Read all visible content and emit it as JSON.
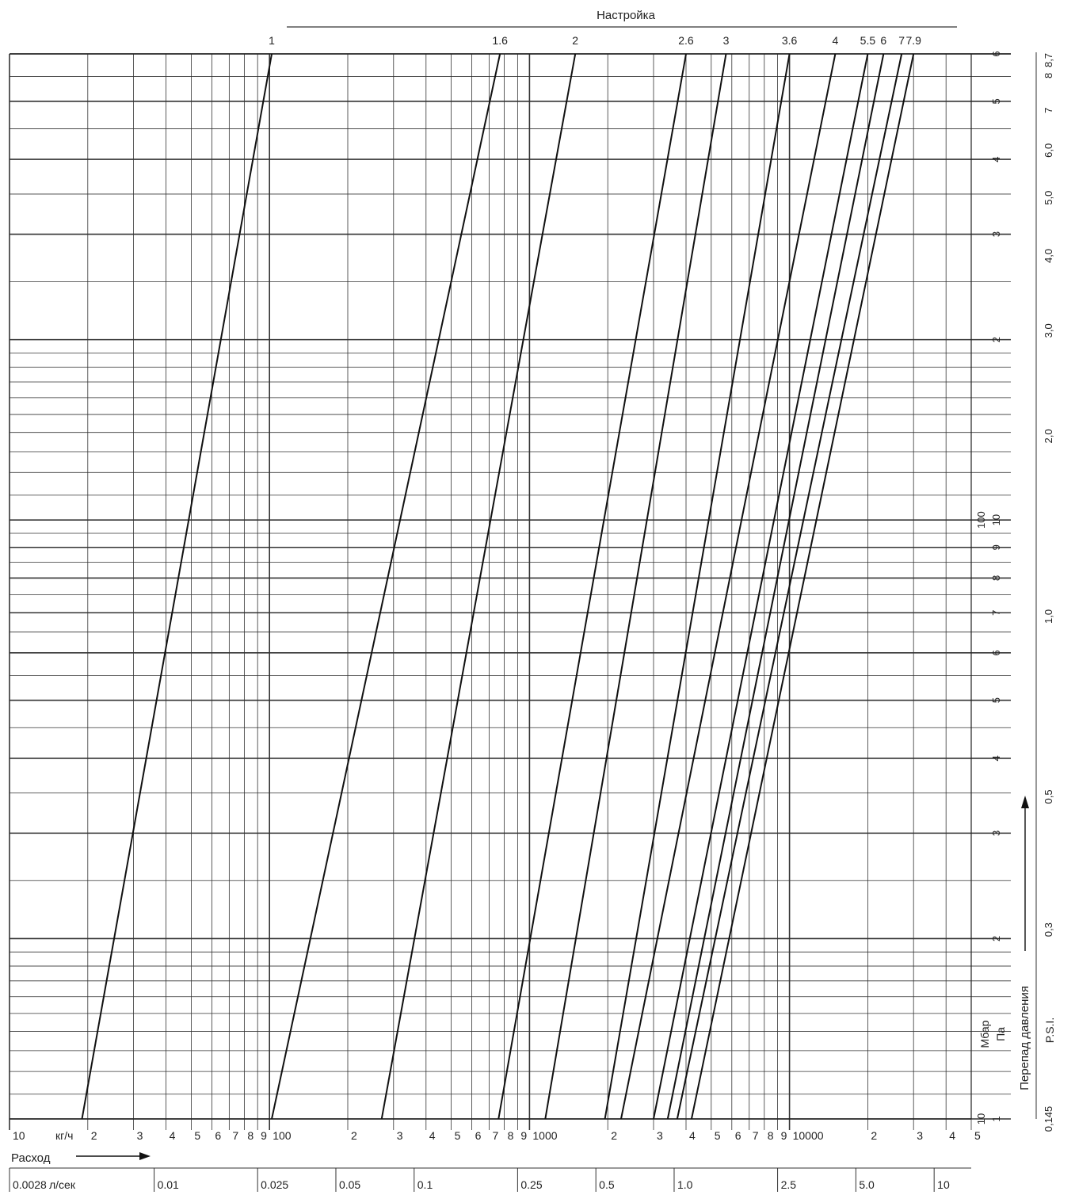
{
  "chart_data": {
    "type": "line",
    "title": "Настройка",
    "x_scale": "log",
    "y_scale": "log",
    "xlim": [
      10,
      50000
    ],
    "ylim": [
      10,
      600
    ],
    "xlabel_main": "Расход",
    "x_unit_label": "кг/ч",
    "x_start_label": "10",
    "x_ticks": [
      {
        "v": 20,
        "t": "2"
      },
      {
        "v": 30,
        "t": "3"
      },
      {
        "v": 40,
        "t": "4"
      },
      {
        "v": 50,
        "t": "5"
      },
      {
        "v": 60,
        "t": "6"
      },
      {
        "v": 70,
        "t": "7"
      },
      {
        "v": 80,
        "t": "8"
      },
      {
        "v": 90,
        "t": "9"
      },
      {
        "v": 100,
        "t": "100"
      },
      {
        "v": 200,
        "t": "2"
      },
      {
        "v": 300,
        "t": "3"
      },
      {
        "v": 400,
        "t": "4"
      },
      {
        "v": 500,
        "t": "5"
      },
      {
        "v": 600,
        "t": "6"
      },
      {
        "v": 700,
        "t": "7"
      },
      {
        "v": 800,
        "t": "8"
      },
      {
        "v": 900,
        "t": "9"
      },
      {
        "v": 1000,
        "t": "1000"
      },
      {
        "v": 2000,
        "t": "2"
      },
      {
        "v": 3000,
        "t": "3"
      },
      {
        "v": 4000,
        "t": "4"
      },
      {
        "v": 5000,
        "t": "5"
      },
      {
        "v": 6000,
        "t": "6"
      },
      {
        "v": 7000,
        "t": "7"
      },
      {
        "v": 8000,
        "t": "8"
      },
      {
        "v": 9000,
        "t": "9"
      },
      {
        "v": 10000,
        "t": "10000"
      },
      {
        "v": 20000,
        "t": "2"
      },
      {
        "v": 30000,
        "t": "3"
      },
      {
        "v": 40000,
        "t": "4"
      },
      {
        "v": 50000,
        "t": "5"
      }
    ],
    "x_secondary_unit_label": "л/сек",
    "x_secondary_ticks": [
      {
        "v": 10,
        "t": "0.0028"
      },
      {
        "v": 36,
        "t": "0.01"
      },
      {
        "v": 90,
        "t": "0.025"
      },
      {
        "v": 180,
        "t": "0.05"
      },
      {
        "v": 360,
        "t": "0.1"
      },
      {
        "v": 900,
        "t": "0.25"
      },
      {
        "v": 1800,
        "t": "0.5"
      },
      {
        "v": 3600,
        "t": "1.0"
      },
      {
        "v": 9000,
        "t": "2.5"
      },
      {
        "v": 18000,
        "t": "5.0"
      },
      {
        "v": 36000,
        "t": "10"
      }
    ],
    "y_gridlines": [
      10,
      11,
      12,
      13,
      14,
      15,
      16,
      17,
      18,
      19,
      20,
      25,
      30,
      35,
      40,
      45,
      50,
      55,
      60,
      65,
      70,
      75,
      80,
      85,
      90,
      95,
      100,
      110,
      120,
      130,
      140,
      150,
      160,
      170,
      180,
      190,
      200,
      250,
      300,
      350,
      400,
      450,
      500,
      550,
      600
    ],
    "y_major_gridlines": [
      10,
      20,
      30,
      40,
      50,
      60,
      70,
      80,
      90,
      100,
      200,
      300,
      400,
      500,
      600
    ],
    "y_ticks_mbar": [
      {
        "v": 10,
        "t": "10"
      },
      {
        "v": 100,
        "t": "100"
      }
    ],
    "y_ticks_pa": [
      {
        "v": 10,
        "t": "1"
      },
      {
        "v": 20,
        "t": "2"
      },
      {
        "v": 30,
        "t": "3"
      },
      {
        "v": 40,
        "t": "4"
      },
      {
        "v": 50,
        "t": "5"
      },
      {
        "v": 60,
        "t": "6"
      },
      {
        "v": 70,
        "t": "7"
      },
      {
        "v": 80,
        "t": "8"
      },
      {
        "v": 90,
        "t": "9"
      },
      {
        "v": 100,
        "t": "10"
      },
      {
        "v": 200,
        "t": "2"
      },
      {
        "v": 300,
        "t": "3"
      },
      {
        "v": 400,
        "t": "4"
      },
      {
        "v": 500,
        "t": "5"
      },
      {
        "v": 600,
        "t": "6"
      }
    ],
    "y_ticks_psi": [
      {
        "v": 10,
        "t": "0,145"
      },
      {
        "v": 20.7,
        "t": "0,3"
      },
      {
        "v": 34.5,
        "t": "0,5"
      },
      {
        "v": 69,
        "t": "1,0"
      },
      {
        "v": 138,
        "t": "2,0"
      },
      {
        "v": 207,
        "t": "3,0"
      },
      {
        "v": 276,
        "t": "4,0"
      },
      {
        "v": 345,
        "t": "5,0"
      },
      {
        "v": 414,
        "t": "6,0"
      },
      {
        "v": 483,
        "t": "7"
      },
      {
        "v": 552,
        "t": "8"
      },
      {
        "v": 600,
        "t": "8,7"
      }
    ],
    "y_unit_labels": {
      "mbar": "Мбар",
      "pa": "Па",
      "psi": "P.S.I."
    },
    "ylabel": "Перепад давления",
    "series": [
      {
        "name": "1",
        "x": [
          19,
          102
        ]
      },
      {
        "name": "1.6",
        "x": [
          102,
          770
        ]
      },
      {
        "name": "2",
        "x": [
          270,
          1500
        ]
      },
      {
        "name": "2.6",
        "x": [
          760,
          4000
        ]
      },
      {
        "name": "3",
        "x": [
          1150,
          5700
        ]
      },
      {
        "name": "3.6",
        "x": [
          1950,
          10000
        ]
      },
      {
        "name": "4",
        "x": [
          2250,
          15000
        ]
      },
      {
        "name": "5.5",
        "x": [
          3000,
          20000
        ]
      },
      {
        "name": "6",
        "x": [
          3400,
          23000
        ]
      },
      {
        "name": "7",
        "x": [
          3700,
          27000
        ]
      },
      {
        "name": "7.9",
        "x": [
          4200,
          30000
        ]
      }
    ]
  }
}
